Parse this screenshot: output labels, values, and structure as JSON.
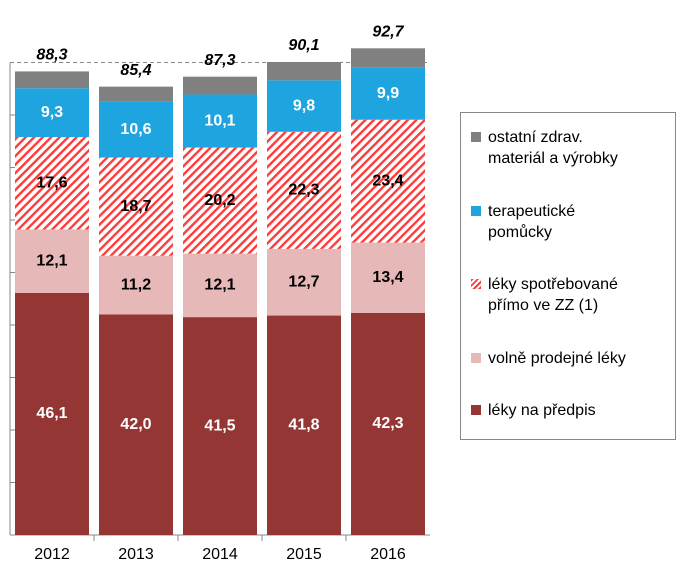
{
  "chart_data": {
    "type": "stacked_bar",
    "categories": [
      "2012",
      "2013",
      "2014",
      "2015",
      "2016"
    ],
    "series": [
      {
        "name": "léky na předpis",
        "color": "#943634",
        "label_color": "#ffffff",
        "values": [
          46.1,
          42.0,
          41.5,
          41.8,
          42.3
        ],
        "value_labels": [
          "46,1",
          "42,0",
          "41,5",
          "41,8",
          "42,3"
        ]
      },
      {
        "name": "volně prodejné léky",
        "color": "#e6b9b8",
        "label_color": "#000000",
        "values": [
          12.1,
          11.2,
          12.1,
          12.7,
          13.4
        ],
        "value_labels": [
          "12,1",
          "11,2",
          "12,1",
          "12,7",
          "13,4"
        ]
      },
      {
        "name": "léky spotřebované\npřímo ve ZZ (1)",
        "color": "#ff3b3b",
        "hatch": true,
        "label_color": "#000000",
        "values": [
          17.6,
          18.7,
          20.2,
          22.3,
          23.4
        ],
        "value_labels": [
          "17,6",
          "18,7",
          "20,2",
          "22,3",
          "23,4"
        ]
      },
      {
        "name": "terapeutické\npomůcky",
        "color": "#1ea5e0",
        "label_color": "#ffffff",
        "values": [
          9.3,
          10.6,
          10.1,
          9.8,
          9.9
        ],
        "value_labels": [
          "9,3",
          "10,6",
          "10,1",
          "9,8",
          "9,9"
        ]
      },
      {
        "name": "ostatní zdrav.\nmateriál a výrobky",
        "color": "#808080",
        "values": [
          3.2,
          2.9,
          3.4,
          3.5,
          3.7
        ]
      }
    ],
    "totals": [
      88.3,
      85.4,
      87.3,
      90.1,
      92.7
    ],
    "total_labels": [
      "88,3",
      "85,4",
      "87,3",
      "90,1",
      "92,7"
    ],
    "ylim": [
      0,
      100
    ],
    "yticks": [
      0,
      10,
      20,
      30,
      40,
      50,
      60,
      70,
      80,
      90
    ],
    "legend": "right"
  }
}
